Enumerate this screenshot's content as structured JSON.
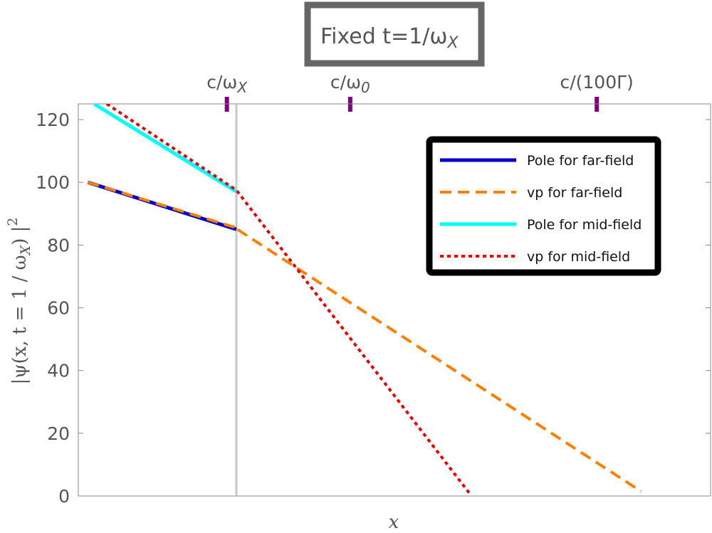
{
  "chart_data": {
    "type": "line",
    "title": "Fixed t=1/ω",
    "title_sub": "X",
    "xlabel": "x",
    "ylabel": "|ψ(x, t = 1 / ω",
    "ylabel_sub": "X",
    "ylabel_tail": ") |",
    "ylabel_sup": "2",
    "xlim": [
      0,
      10
    ],
    "ylim": [
      0,
      125
    ],
    "yticks": [
      "0",
      "20",
      "40",
      "60",
      "80",
      "100",
      "120"
    ],
    "grid": false,
    "legend_position": "top-right",
    "vertical_marker_x": 2.5,
    "top_markers": [
      {
        "x": 2.35,
        "label": "c/ω",
        "sub": "X",
        "color": "#800080"
      },
      {
        "x": 4.3,
        "label": "c/ω",
        "sub": "0",
        "color": "#800080"
      },
      {
        "x": 8.2,
        "label": "c/(100Γ)",
        "sub": "",
        "color": "#800080"
      }
    ],
    "series": [
      {
        "name": "Pole for far-field",
        "color": "#0000cc",
        "style": "solid",
        "width": 5,
        "x": [
          0.15,
          2.5
        ],
        "y": [
          100,
          85
        ]
      },
      {
        "name": "vp for far-field",
        "color": "#ff8000",
        "style": "dashed",
        "width": 4,
        "x": [
          0.15,
          2.45,
          2.5,
          2.53,
          8.9
        ],
        "y": [
          100,
          85.8,
          86.4,
          84.8,
          1.5
        ]
      },
      {
        "name": "Pole for mid-field",
        "color": "#00ffff",
        "style": "solid",
        "width": 5,
        "x": [
          0.25,
          2.5
        ],
        "y": [
          125,
          97
        ]
      },
      {
        "name": "vp for mid-field",
        "color": "#ee0000",
        "style": "dotted",
        "width": 4,
        "x": [
          0.45,
          2.5,
          6.2
        ],
        "y": [
          125,
          97.5,
          0.5
        ]
      }
    ]
  }
}
